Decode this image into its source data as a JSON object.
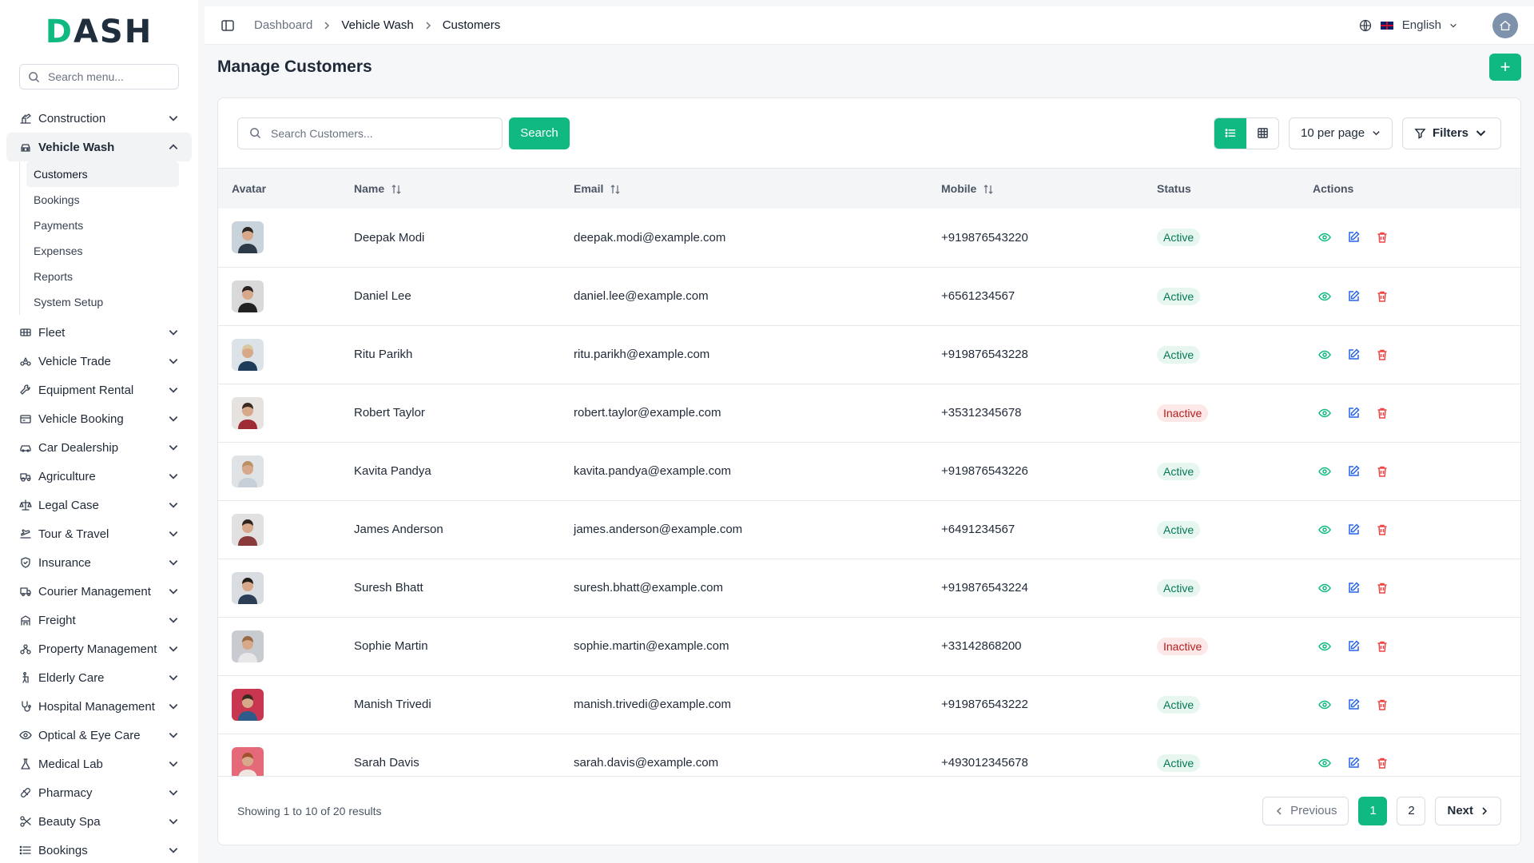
{
  "sidebar": {
    "logo_prefix": "D",
    "logo_rest": "ASH",
    "search_placeholder": "Search menu...",
    "items": [
      {
        "label": "Construction",
        "icon": "construction-icon"
      },
      {
        "label": "Vehicle Wash",
        "icon": "car-wash-icon",
        "expanded": true
      },
      {
        "label": "Fleet",
        "icon": "fleet-icon"
      },
      {
        "label": "Vehicle Trade",
        "icon": "vehicle-trade-icon"
      },
      {
        "label": "Equipment Rental",
        "icon": "wrench-icon"
      },
      {
        "label": "Vehicle Booking",
        "icon": "booking-icon"
      },
      {
        "label": "Car Dealership",
        "icon": "car-icon"
      },
      {
        "label": "Agriculture",
        "icon": "agriculture-icon"
      },
      {
        "label": "Legal Case",
        "icon": "scale-icon"
      },
      {
        "label": "Tour & Travel",
        "icon": "travel-icon"
      },
      {
        "label": "Insurance",
        "icon": "shield-icon"
      },
      {
        "label": "Courier Management",
        "icon": "truck-icon"
      },
      {
        "label": "Freight",
        "icon": "freight-icon"
      },
      {
        "label": "Property Management",
        "icon": "property-icon"
      },
      {
        "label": "Elderly Care",
        "icon": "elderly-icon"
      },
      {
        "label": "Hospital Management",
        "icon": "stethoscope-icon"
      },
      {
        "label": "Optical & Eye Care",
        "icon": "eye-icon"
      },
      {
        "label": "Medical Lab",
        "icon": "flask-icon"
      },
      {
        "label": "Pharmacy",
        "icon": "pill-icon"
      },
      {
        "label": "Beauty Spa",
        "icon": "scissors-icon"
      },
      {
        "label": "Bookings",
        "icon": "list-icon"
      }
    ],
    "vehicle_wash_sub": [
      "Customers",
      "Bookings",
      "Payments",
      "Expenses",
      "Reports",
      "System Setup"
    ]
  },
  "topbar": {
    "breadcrumb": [
      "Dashboard",
      "Vehicle Wash",
      "Customers"
    ],
    "language": "English"
  },
  "page": {
    "title": "Manage Customers",
    "add_label": "+"
  },
  "toolbar": {
    "search_placeholder": "Search Customers...",
    "search_button": "Search",
    "per_page": "10 per page",
    "filters": "Filters"
  },
  "table": {
    "headers": [
      "Avatar",
      "Name",
      "Email",
      "Mobile",
      "Status",
      "Actions"
    ],
    "rows": [
      {
        "name": "Deepak Modi",
        "email": "deepak.modi@example.com",
        "mobile": "+919876543220",
        "status": "Active",
        "bg": "#c9d3dc",
        "shirt": "#2d3a4a",
        "hair": "#2a2622"
      },
      {
        "name": "Daniel Lee",
        "email": "daniel.lee@example.com",
        "mobile": "+6561234567",
        "status": "Active",
        "bg": "#d9d9d9",
        "shirt": "#222222",
        "hair": "#2b2320"
      },
      {
        "name": "Ritu Parikh",
        "email": "ritu.parikh@example.com",
        "mobile": "+919876543228",
        "status": "Active",
        "bg": "#dce3e8",
        "shirt": "#1f3b5a",
        "hair": "#d8c7a0"
      },
      {
        "name": "Robert Taylor",
        "email": "robert.taylor@example.com",
        "mobile": "+35312345678",
        "status": "Inactive",
        "bg": "#e6e2e0",
        "shirt": "#9e2b34",
        "hair": "#3a2a22"
      },
      {
        "name": "Kavita Pandya",
        "email": "kavita.pandya@example.com",
        "mobile": "+919876543226",
        "status": "Active",
        "bg": "#dfe3e6",
        "shirt": "#c7cfd8",
        "hair": "#b99063"
      },
      {
        "name": "James Anderson",
        "email": "james.anderson@example.com",
        "mobile": "+6491234567",
        "status": "Active",
        "bg": "#e1e1e1",
        "shirt": "#8a3a3a",
        "hair": "#2f2420"
      },
      {
        "name": "Suresh Bhatt",
        "email": "suresh.bhatt@example.com",
        "mobile": "+919876543224",
        "status": "Active",
        "bg": "#d9dde1",
        "shirt": "#2c3e55",
        "hair": "#241e1b"
      },
      {
        "name": "Sophie Martin",
        "email": "sophie.martin@example.com",
        "mobile": "+33142868200",
        "status": "Inactive",
        "bg": "#c8ccd0",
        "shirt": "#e8e8e8",
        "hair": "#9a6a44"
      },
      {
        "name": "Manish Trivedi",
        "email": "manish.trivedi@example.com",
        "mobile": "+919876543222",
        "status": "Active",
        "bg": "#c8374f",
        "shirt": "#2e5b8a",
        "hair": "#3a2a22"
      },
      {
        "name": "Sarah Davis",
        "email": "sarah.davis@example.com",
        "mobile": "+493012345678",
        "status": "Active",
        "bg": "#e46a7a",
        "shirt": "#f0e6e0",
        "hair": "#a0522d"
      }
    ]
  },
  "footer": {
    "showing": "Showing 1 to 10 of 20 results",
    "previous": "Previous",
    "pages": [
      "1",
      "2"
    ],
    "next": "Next"
  },
  "colors": {
    "accent": "#10b981",
    "active_badge_bg": "#e7f7ef",
    "inactive_badge_bg": "#fde8e8"
  }
}
